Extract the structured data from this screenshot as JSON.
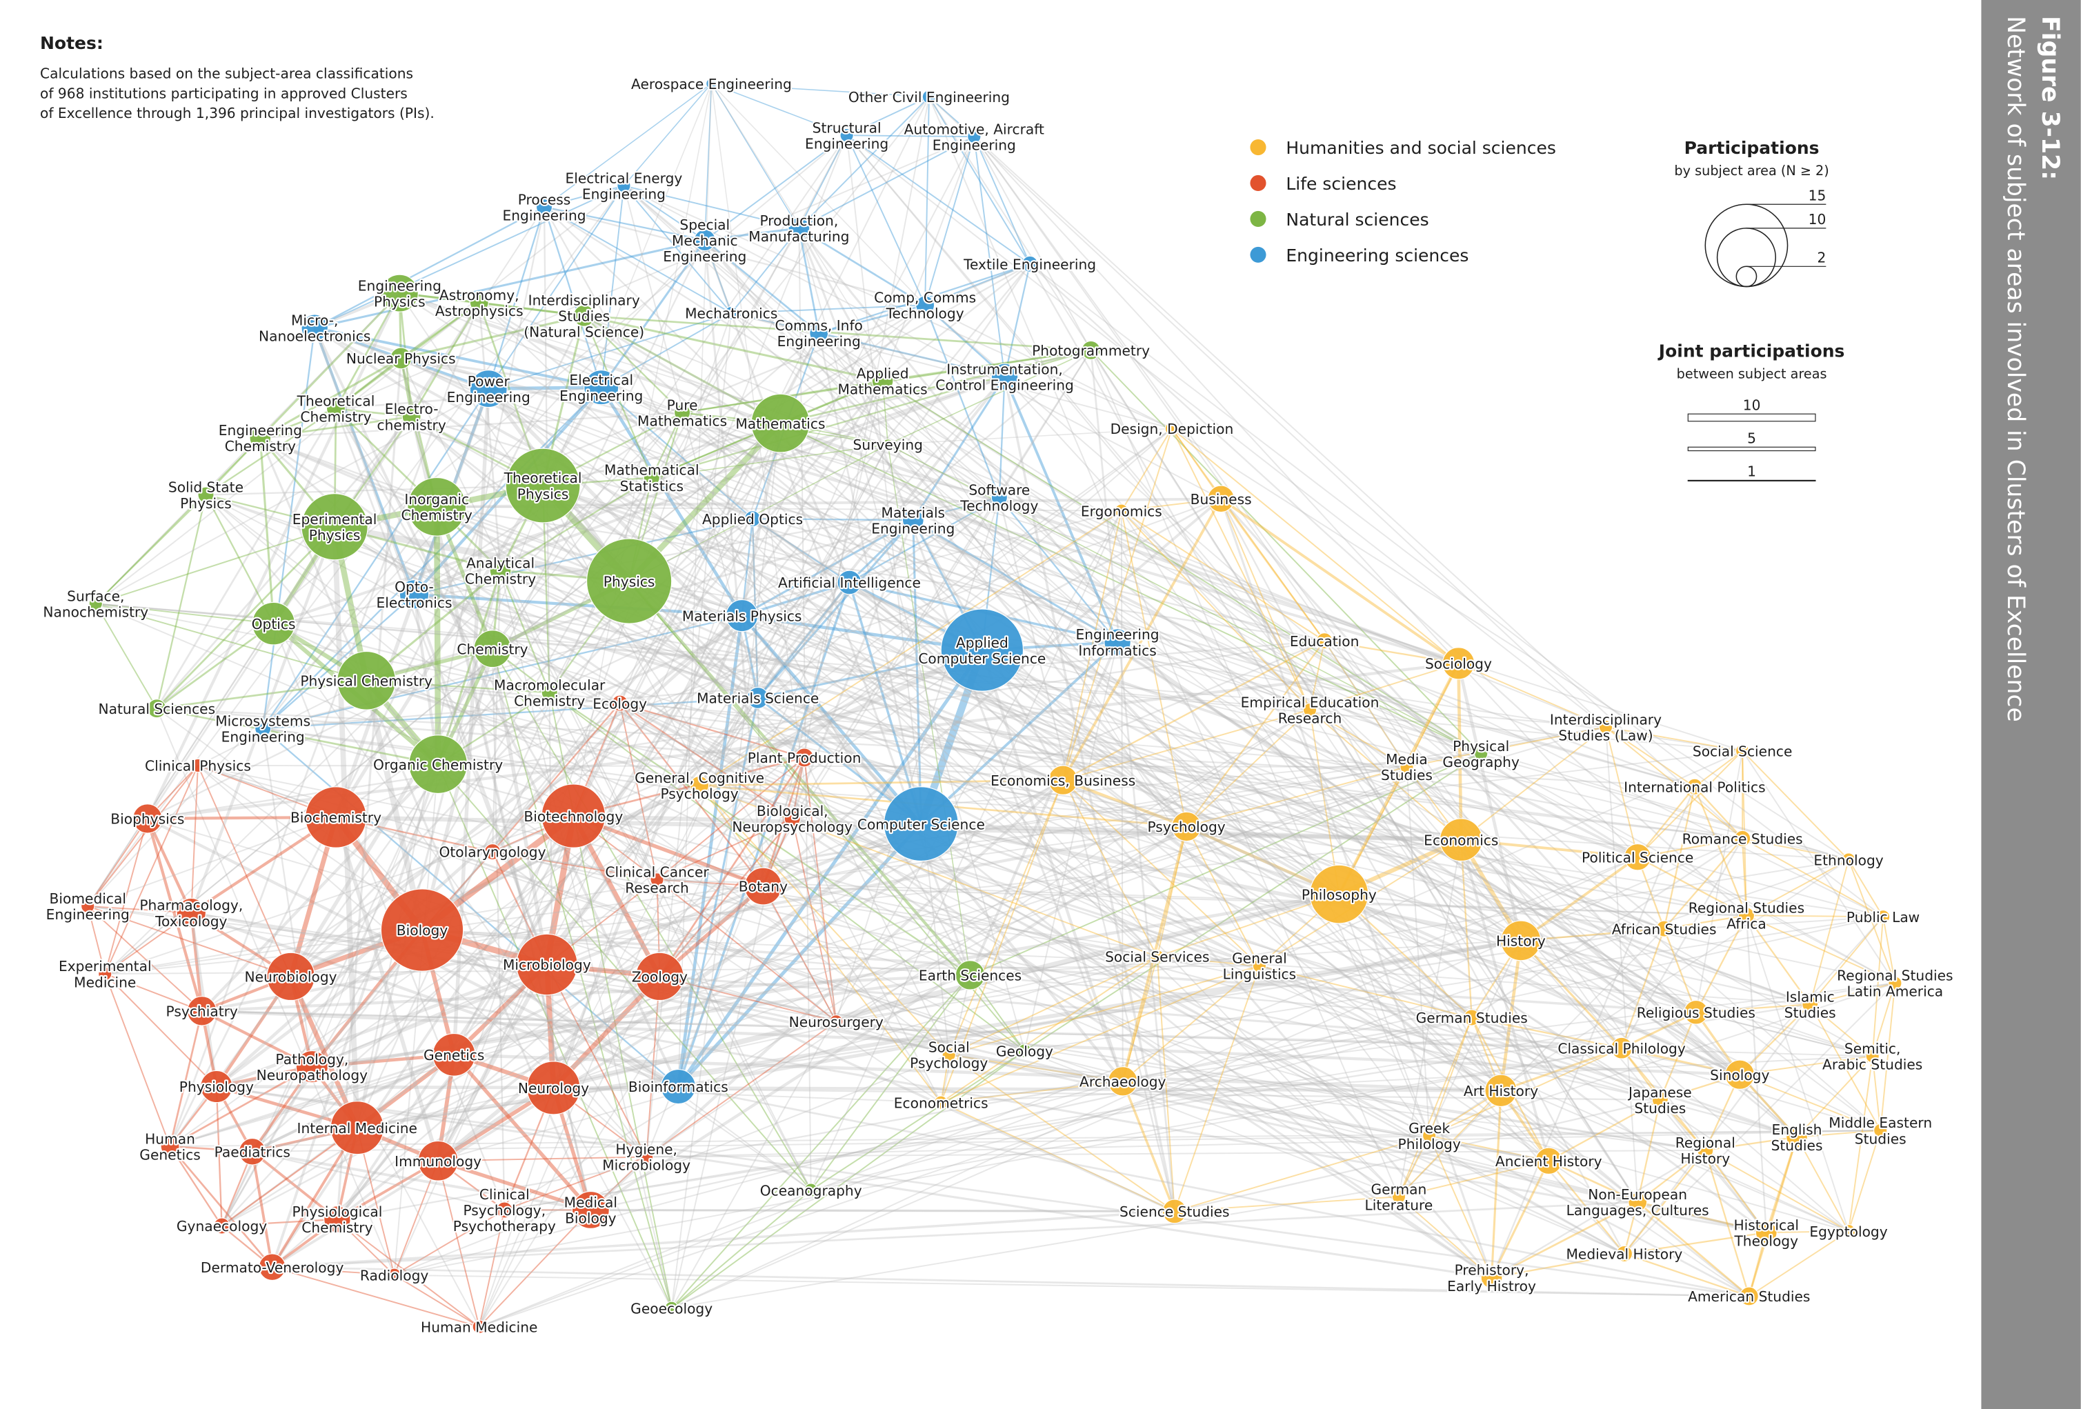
{
  "notes": {
    "title": "Notes:",
    "lines": [
      "Calculations based on the subject-area classifications",
      "of 968 institutions participating in approved Clusters",
      "of Excellence through 1,396 principal investigators (PIs)."
    ]
  },
  "legend": [
    {
      "label": "Humanities and social sciences",
      "color": "#f8b732"
    },
    {
      "label": "Life sciences",
      "color": "#e2522d"
    },
    {
      "label": "Natural sciences",
      "color": "#7db544"
    },
    {
      "label": "Engineering sciences",
      "color": "#3d9ad6"
    }
  ],
  "participations": {
    "title": "Participations",
    "subtitle": "by subject area (N ≥ 2)",
    "sizes": [
      15,
      10,
      2
    ]
  },
  "joint": {
    "title": "Joint participations",
    "subtitle": "between subject areas",
    "widths": [
      10,
      5,
      1
    ]
  },
  "figure": {
    "label": "Figure 3-12:",
    "title": "Network of subject areas involved in Clusters of Excellence"
  },
  "nodes": [
    {
      "label": "Aerospace Engineering",
      "group": 3
    },
    {
      "label": "Other Civil Engineering",
      "group": 3
    },
    {
      "label": "Structural\nEngineering",
      "group": 3
    },
    {
      "label": "Automotive, Aircraft\nEngineering",
      "group": 3
    },
    {
      "label": "Electrical Energy\nEngineering",
      "group": 3
    },
    {
      "label": "Process\nEngineering",
      "group": 3
    },
    {
      "label": "Special\nMechanic\nEngineering",
      "group": 3
    },
    {
      "label": "Production,\nManufacturing",
      "group": 3
    },
    {
      "label": "Textile Engineering",
      "group": 3
    },
    {
      "label": "Micro-,\nNanoelectronics",
      "group": 3
    },
    {
      "label": "Mechatronics",
      "group": 3
    },
    {
      "label": "Comp, Comms\nTechnology",
      "group": 3
    },
    {
      "label": "Comms, Info\nEngineering",
      "group": 3
    },
    {
      "label": "Power\nEngineering",
      "group": 3
    },
    {
      "label": "Electrical\nEngineering",
      "group": 3
    },
    {
      "label": "Instrumentation,\nControl Engineering",
      "group": 3
    },
    {
      "label": "Software\nTechnology",
      "group": 3
    },
    {
      "label": "Applied Optics",
      "group": 3
    },
    {
      "label": "Materials\nEngineering",
      "group": 3
    },
    {
      "label": "Opto-\nElectronics",
      "group": 3
    },
    {
      "label": "Artificial Intelligence",
      "group": 3
    },
    {
      "label": "Materials Physics",
      "group": 3
    },
    {
      "label": "Applied\nComputer Science",
      "group": 3
    },
    {
      "label": "Engineering\nInformatics",
      "group": 3
    },
    {
      "label": "Materials Science",
      "group": 3
    },
    {
      "label": "Microsystems\nEngineering",
      "group": 3
    },
    {
      "label": "Computer Science",
      "group": 3
    },
    {
      "label": "Bioinformatics",
      "group": 3
    },
    {
      "label": "Engineering\nPhysics",
      "group": 2
    },
    {
      "label": "Astronomy,\nAstrophysics",
      "group": 2
    },
    {
      "label": "Interdisciplinary\nStudies\n(Natural Science)",
      "group": 2
    },
    {
      "label": "Nuclear Physics",
      "group": 2
    },
    {
      "label": "Theoretical\nChemistry",
      "group": 2
    },
    {
      "label": "Electro-\nchemistry",
      "group": 2
    },
    {
      "label": "Engineering\nChemistry",
      "group": 2
    },
    {
      "label": "Pure\nMathematics",
      "group": 2
    },
    {
      "label": "Mathematics",
      "group": 2
    },
    {
      "label": "Applied\nMathematics",
      "group": 2
    },
    {
      "label": "Photogrammetry",
      "group": 2
    },
    {
      "label": "Solid State\nPhysics",
      "group": 2
    },
    {
      "label": "Theoretical\nPhysics",
      "group": 2
    },
    {
      "label": "Inorganic\nChemistry",
      "group": 2
    },
    {
      "label": "Mathematical\nStatistics",
      "group": 2
    },
    {
      "label": "Eperimental\nPhysics",
      "group": 2
    },
    {
      "label": "Analytical\nChemistry",
      "group": 2
    },
    {
      "label": "Physics",
      "group": 2
    },
    {
      "label": "Surface,\nNanochemistry",
      "group": 2
    },
    {
      "label": "Optics",
      "group": 2
    },
    {
      "label": "Chemistry",
      "group": 2
    },
    {
      "label": "Physical Chemistry",
      "group": 2
    },
    {
      "label": "Macromolecular\nChemistry",
      "group": 2
    },
    {
      "label": "Natural Sciences",
      "group": 2
    },
    {
      "label": "Organic Chemistry",
      "group": 2
    },
    {
      "label": "Earth Sciences",
      "group": 2
    },
    {
      "label": "Geology",
      "group": 2
    },
    {
      "label": "Oceanography",
      "group": 2
    },
    {
      "label": "Geoecology",
      "group": 2
    },
    {
      "label": "Surveying",
      "group": 2
    },
    {
      "label": "Physical\nGeography",
      "group": 2
    },
    {
      "label": "Ecology",
      "group": 1
    },
    {
      "label": "Clinical Physics",
      "group": 1
    },
    {
      "label": "Plant Production",
      "group": 1
    },
    {
      "label": "Biophysics",
      "group": 1
    },
    {
      "label": "Biochemistry",
      "group": 1
    },
    {
      "label": "Biotechnology",
      "group": 1
    },
    {
      "label": "Biological,\nNeuropsychology",
      "group": 1
    },
    {
      "label": "Otolaryngology",
      "group": 1
    },
    {
      "label": "Clinical Cancer\nResearch",
      "group": 1
    },
    {
      "label": "Botany",
      "group": 1
    },
    {
      "label": "Biomedical\nEngineering",
      "group": 1
    },
    {
      "label": "Pharmacology,\nToxicology",
      "group": 1
    },
    {
      "label": "Biology",
      "group": 1
    },
    {
      "label": "Experimental\nMedicine",
      "group": 1
    },
    {
      "label": "Neurobiology",
      "group": 1
    },
    {
      "label": "Microbiology",
      "group": 1
    },
    {
      "label": "Zoology",
      "group": 1
    },
    {
      "label": "Psychiatry",
      "group": 1
    },
    {
      "label": "Neurosurgery",
      "group": 1
    },
    {
      "label": "Pathology,\nNeuropathology",
      "group": 1
    },
    {
      "label": "Genetics",
      "group": 1
    },
    {
      "label": "Physiology",
      "group": 1
    },
    {
      "label": "Neurology",
      "group": 1
    },
    {
      "label": "Internal Medicine",
      "group": 1
    },
    {
      "label": "Human\nGenetics",
      "group": 1
    },
    {
      "label": "Paediatrics",
      "group": 1
    },
    {
      "label": "Immunology",
      "group": 1
    },
    {
      "label": "Hygiene,\nMicrobiology",
      "group": 1
    },
    {
      "label": "Clinical\nPsychology,\nPsychotherapy",
      "group": 1
    },
    {
      "label": "Medical\nBiology",
      "group": 1
    },
    {
      "label": "Physiological\nChemistry",
      "group": 1
    },
    {
      "label": "Gynaecology",
      "group": 1
    },
    {
      "label": "Dermato-Venerology",
      "group": 1
    },
    {
      "label": "Radiology",
      "group": 1
    },
    {
      "label": "Human Medicine",
      "group": 1
    },
    {
      "label": "General, Cognitive\nPsychology",
      "group": 0
    },
    {
      "label": "Design, Depiction",
      "group": 0
    },
    {
      "label": "Business",
      "group": 0
    },
    {
      "label": "Ergonomics",
      "group": 0
    },
    {
      "label": "Education",
      "group": 0
    },
    {
      "label": "Sociology",
      "group": 0
    },
    {
      "label": "Empirical Education\nResearch",
      "group": 0
    },
    {
      "label": "Interdisciplinary\nStudies (Law)",
      "group": 0
    },
    {
      "label": "Media\nStudies",
      "group": 0
    },
    {
      "label": "Social Science",
      "group": 0
    },
    {
      "label": "International Politics",
      "group": 0
    },
    {
      "label": "Economics, Business",
      "group": 0
    },
    {
      "label": "Psychology",
      "group": 0
    },
    {
      "label": "Economics",
      "group": 0
    },
    {
      "label": "Romance Studies",
      "group": 0
    },
    {
      "label": "Political Science",
      "group": 0
    },
    {
      "label": "Ethnology",
      "group": 0
    },
    {
      "label": "Philosophy",
      "group": 0
    },
    {
      "label": "Regional Studies\nAfrica",
      "group": 0
    },
    {
      "label": "Public Law",
      "group": 0
    },
    {
      "label": "African Studies",
      "group": 0
    },
    {
      "label": "History",
      "group": 0
    },
    {
      "label": "Social Services",
      "group": 0
    },
    {
      "label": "General\nLinguistics",
      "group": 0
    },
    {
      "label": "Regional Studies\nLatin America",
      "group": 0
    },
    {
      "label": "Islamic\nStudies",
      "group": 0
    },
    {
      "label": "Religious Studies",
      "group": 0
    },
    {
      "label": "German Studies",
      "group": 0
    },
    {
      "label": "Classical Philology",
      "group": 0
    },
    {
      "label": "Social\nPsychology",
      "group": 0
    },
    {
      "label": "Semitic,\nArabic Studies",
      "group": 0
    },
    {
      "label": "Sinology",
      "group": 0
    },
    {
      "label": "Archaeology",
      "group": 0
    },
    {
      "label": "Art History",
      "group": 0
    },
    {
      "label": "Japanese\nStudies",
      "group": 0
    },
    {
      "label": "Econometrics",
      "group": 0
    },
    {
      "label": "Greek\nPhilology",
      "group": 0
    },
    {
      "label": "English\nStudies",
      "group": 0
    },
    {
      "label": "Middle Eastern\nStudies",
      "group": 0
    },
    {
      "label": "Regional\nHistory",
      "group": 0
    },
    {
      "label": "Ancient History",
      "group": 0
    },
    {
      "label": "German\nLiterature",
      "group": 0
    },
    {
      "label": "Non-European\nLanguages, Cultures",
      "group": 0
    },
    {
      "label": "Science Studies",
      "group": 0
    },
    {
      "label": "Historical\nTheology",
      "group": 0
    },
    {
      "label": "Egyptology",
      "group": 0
    },
    {
      "label": "Medieval History",
      "group": 0
    },
    {
      "label": "Prehistory,\nEarly Histroy",
      "group": 0
    },
    {
      "label": "American Studies",
      "group": 0
    }
  ]
}
